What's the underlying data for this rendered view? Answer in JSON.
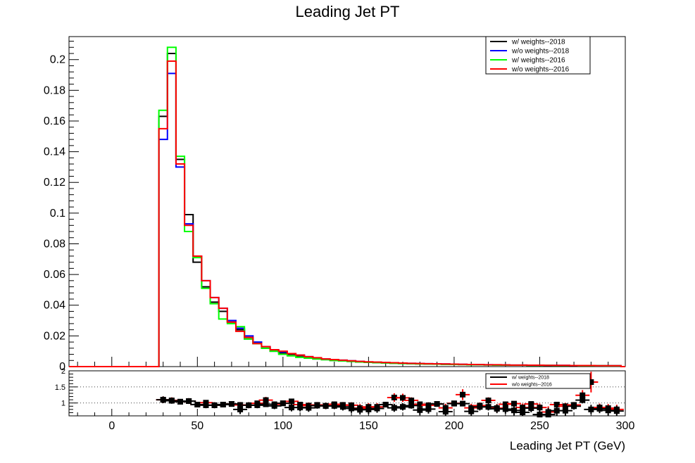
{
  "chart_data": [
    {
      "type": "line",
      "title": "Leading Jet PT",
      "xlabel": "Leading Jet PT (GeV)",
      "ylabel": "",
      "xlim": [
        -25,
        300
      ],
      "ylim": [
        0,
        0.215
      ],
      "x_ticks": [
        "0",
        "50",
        "100",
        "150",
        "200",
        "250",
        "300"
      ],
      "y_ticks": [
        "0",
        "0.02",
        "0.04",
        "0.06",
        "0.08",
        "0.1",
        "0.12",
        "0.14",
        "0.16",
        "0.18",
        "0.2"
      ],
      "legend_position": "top-right",
      "bin_edges": [
        27.5,
        32.5,
        37.5,
        42.5,
        47.5,
        52.5,
        57.5,
        62.5,
        67.5,
        72.5,
        77.5,
        82.5,
        87.5,
        92.5,
        97.5,
        102.5,
        107.5,
        112.5,
        117.5,
        122.5,
        127.5,
        132.5,
        137.5,
        142.5,
        147.5,
        152.5,
        157.5,
        162.5,
        167.5,
        172.5,
        177.5,
        182.5,
        187.5,
        192.5,
        197.5,
        202.5,
        207.5,
        212.5,
        217.5,
        222.5,
        227.5,
        232.5,
        237.5,
        242.5,
        247.5,
        252.5,
        257.5,
        262.5,
        267.5,
        272.5,
        277.5,
        282.5,
        287.5,
        292.5,
        297.5
      ],
      "series": [
        {
          "name": "w/ weights--2018",
          "color": "#000000",
          "values": [
            0.163,
            0.204,
            0.135,
            0.099,
            0.068,
            0.052,
            0.042,
            0.036,
            0.029,
            0.024,
            0.018,
            0.015,
            0.012,
            0.01,
            0.009,
            0.008,
            0.007,
            0.006,
            0.005,
            0.0045,
            0.004,
            0.0038,
            0.0034,
            0.003,
            0.0028,
            0.0026,
            0.0024,
            0.0022,
            0.002,
            0.0019,
            0.0018,
            0.0017,
            0.0016,
            0.0015,
            0.0014,
            0.0013,
            0.0012,
            0.0012,
            0.0011,
            0.001,
            0.001,
            0.0009,
            0.0009,
            0.0008,
            0.0008,
            0.0007,
            0.0007,
            0.0007,
            0.0006,
            0.0006,
            0.0006,
            0.0005,
            0.0005,
            0.0005
          ]
        },
        {
          "name": "w/o weights--2018",
          "color": "#0000ff",
          "values": [
            0.148,
            0.191,
            0.13,
            0.093,
            0.072,
            0.056,
            0.045,
            0.038,
            0.03,
            0.025,
            0.02,
            0.016,
            0.013,
            0.011,
            0.0095,
            0.0085,
            0.0075,
            0.0065,
            0.0055,
            0.005,
            0.0045,
            0.0042,
            0.0038,
            0.0034,
            0.003,
            0.0028,
            0.0026,
            0.0024,
            0.0022,
            0.0021,
            0.002,
            0.0019,
            0.0018,
            0.0017,
            0.0016,
            0.0015,
            0.0014,
            0.0013,
            0.0012,
            0.0011,
            0.0011,
            0.001,
            0.001,
            0.0009,
            0.0009,
            0.0008,
            0.0008,
            0.0008,
            0.0007,
            0.0007,
            0.0007,
            0.0006,
            0.0006,
            0.0006
          ]
        },
        {
          "name": "w/ weights--2016",
          "color": "#00ff00",
          "values": [
            0.167,
            0.208,
            0.137,
            0.088,
            0.071,
            0.051,
            0.041,
            0.031,
            0.028,
            0.026,
            0.018,
            0.015,
            0.012,
            0.01,
            0.008,
            0.007,
            0.006,
            0.0055,
            0.005,
            0.0045,
            0.004,
            0.0037,
            0.0034,
            0.003,
            0.0028,
            0.0026,
            0.0024,
            0.0022,
            0.002,
            0.0019,
            0.0018,
            0.0017,
            0.0016,
            0.0015,
            0.0014,
            0.0013,
            0.0012,
            0.0012,
            0.0011,
            0.001,
            0.001,
            0.0009,
            0.0009,
            0.0008,
            0.0008,
            0.0008,
            0.0007,
            0.0007,
            0.0007,
            0.0006,
            0.0006,
            0.0006,
            0.0005,
            0.0005
          ]
        },
        {
          "name": "w/o weights--2016",
          "color": "#ff0000",
          "values": [
            0.155,
            0.199,
            0.132,
            0.092,
            0.072,
            0.056,
            0.045,
            0.038,
            0.029,
            0.023,
            0.019,
            0.015,
            0.013,
            0.011,
            0.01,
            0.0085,
            0.0075,
            0.0065,
            0.0058,
            0.005,
            0.0046,
            0.0042,
            0.0038,
            0.0034,
            0.0031,
            0.0029,
            0.0027,
            0.0025,
            0.0023,
            0.0021,
            0.002,
            0.0019,
            0.0018,
            0.0017,
            0.0016,
            0.0015,
            0.0014,
            0.0013,
            0.0012,
            0.0012,
            0.0011,
            0.001,
            0.001,
            0.0009,
            0.0009,
            0.0008,
            0.0008,
            0.0008,
            0.0007,
            0.0007,
            0.0007,
            0.0006,
            0.0006,
            0.0006
          ]
        }
      ]
    },
    {
      "type": "scatter",
      "title": "",
      "xlabel": "",
      "ylabel": "",
      "xlim": [
        -25,
        300
      ],
      "ylim": [
        0.6,
        2.0
      ],
      "y_ticks": [
        "1",
        "1.5",
        "2"
      ],
      "gridlines_y": [
        1.0,
        1.5
      ],
      "grid_style": "dotted",
      "legend_position": "top-right",
      "x": [
        30,
        35,
        40,
        45,
        50,
        55,
        60,
        65,
        70,
        75,
        80,
        85,
        90,
        95,
        100,
        105,
        110,
        115,
        120,
        125,
        130,
        135,
        140,
        145,
        150,
        155,
        160,
        165,
        170,
        175,
        180,
        185,
        190,
        195,
        200,
        205,
        210,
        215,
        220,
        225,
        230,
        235,
        240,
        245,
        250,
        255,
        260,
        265,
        270,
        275,
        280,
        285,
        290,
        295
      ],
      "series": [
        {
          "name": "w/ weights--2018",
          "color": "#000000",
          "values": [
            1.1,
            1.07,
            1.04,
            1.06,
            0.95,
            0.93,
            0.93,
            0.95,
            0.97,
            0.8,
            0.93,
            0.93,
            0.96,
            0.91,
            0.99,
            0.86,
            0.86,
            0.85,
            0.92,
            0.91,
            0.91,
            0.88,
            0.83,
            0.79,
            0.8,
            0.83,
            0.95,
            0.85,
            0.88,
            0.92,
            0.78,
            0.81,
            0.97,
            0.73,
            0.98,
            0.98,
            0.74,
            0.88,
            0.88,
            0.82,
            0.81,
            0.77,
            0.71,
            0.84,
            0.64,
            0.64,
            0.76,
            0.76,
            0.9,
            1.09,
            0.8,
            0.82,
            0.77,
            0.75
          ]
        },
        {
          "name": "w/o weights--2016",
          "color": "#ff0000",
          "values": [
            1.1,
            1.08,
            1.04,
            1.06,
            0.95,
            1.01,
            0.93,
            0.95,
            0.97,
            0.94,
            0.93,
            0.99,
            1.09,
            0.96,
            0.99,
            1.05,
            0.95,
            0.92,
            0.94,
            0.91,
            0.96,
            0.94,
            0.93,
            0.84,
            0.88,
            0.88,
            0.95,
            1.17,
            1.16,
            1.08,
            0.96,
            0.93,
            0.97,
            0.85,
            0.99,
            1.26,
            0.85,
            0.92,
            1.08,
            0.84,
            0.96,
            0.98,
            0.86,
            0.97,
            0.86,
            0.72,
            0.95,
            0.9,
            0.94,
            1.24,
            1.65,
            0.86,
            0.84,
            0.8
          ]
        }
      ]
    }
  ]
}
